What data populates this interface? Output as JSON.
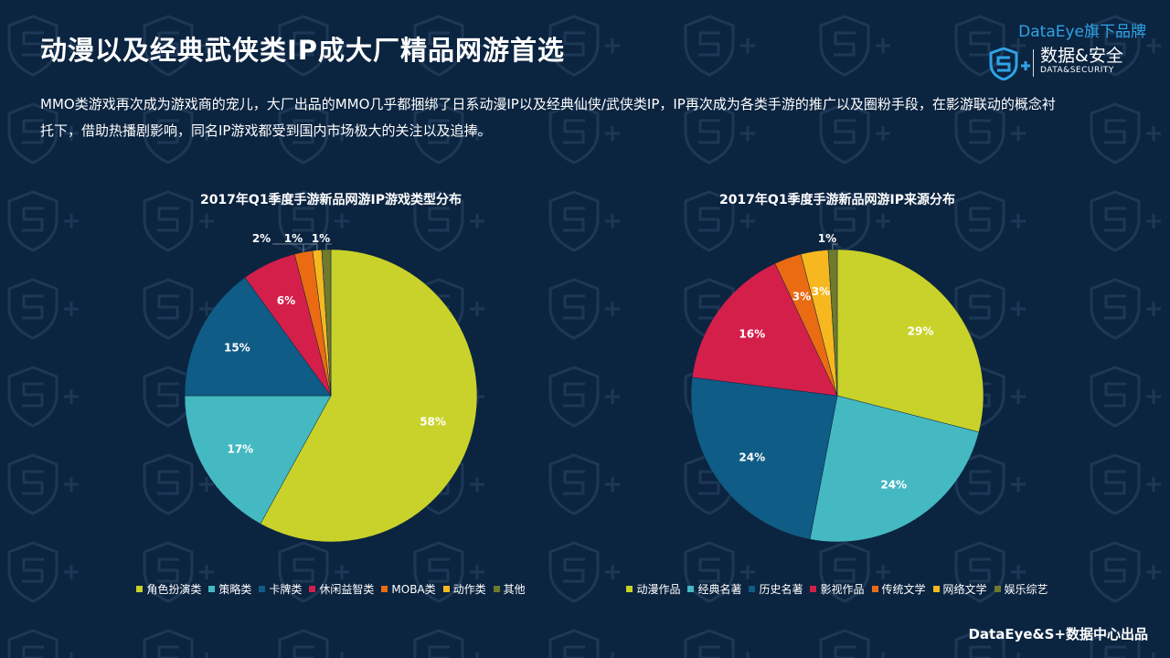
{
  "header": {
    "title": "动漫以及经典武侠类IP成大厂精品网游首选",
    "description": "MMO类游戏再次成为游戏商的宠儿，大厂出品的MMO几乎都捆绑了日系动漫IP以及经典仙侠/武侠类IP，IP再次成为各类手游的推广以及圈粉手段，在影游联动的概念衬托下，借助热播剧影响，同名IP游戏都受到国内市场极大的关注以及追捧。"
  },
  "brand": {
    "top": "DataEye旗下品牌",
    "main": "数据&安全",
    "sub": "DATA&SECURITY"
  },
  "footer": {
    "text": "DataEye&S+数据中心出品"
  },
  "chart_data": [
    {
      "type": "pie",
      "title": "2017年Q1季度手游新品网游IP游戏类型分布",
      "categories": [
        "角色扮演类",
        "策略类",
        "卡牌类",
        "休闲益智类",
        "MOBA类",
        "动作类",
        "其他"
      ],
      "values": [
        58,
        17,
        15,
        6,
        2,
        1,
        1
      ],
      "labels": [
        "58%",
        "17%",
        "15%",
        "6%",
        "2%",
        "1%",
        "1%"
      ],
      "colors": [
        "#c9d22a",
        "#45b9c2",
        "#0f5c86",
        "#d41f4b",
        "#ea6b12",
        "#f7b81f",
        "#6f7a2c"
      ],
      "legend_position": "bottom"
    },
    {
      "type": "pie",
      "title": "2017年Q1季度手游新品网游IP来源分布",
      "categories": [
        "动漫作品",
        "经典名著",
        "历史名著",
        "影视作品",
        "传统文学",
        "网络文学",
        "娱乐综艺"
      ],
      "values": [
        29,
        24,
        24,
        16,
        3,
        3,
        1
      ],
      "labels": [
        "29%",
        "24%",
        "24%",
        "16%",
        "3%",
        "3%",
        "1%"
      ],
      "colors": [
        "#c9d22a",
        "#45b9c2",
        "#0f5c86",
        "#d41f4b",
        "#ea6b12",
        "#f7b81f",
        "#6f7a2c"
      ],
      "legend_position": "bottom"
    }
  ]
}
